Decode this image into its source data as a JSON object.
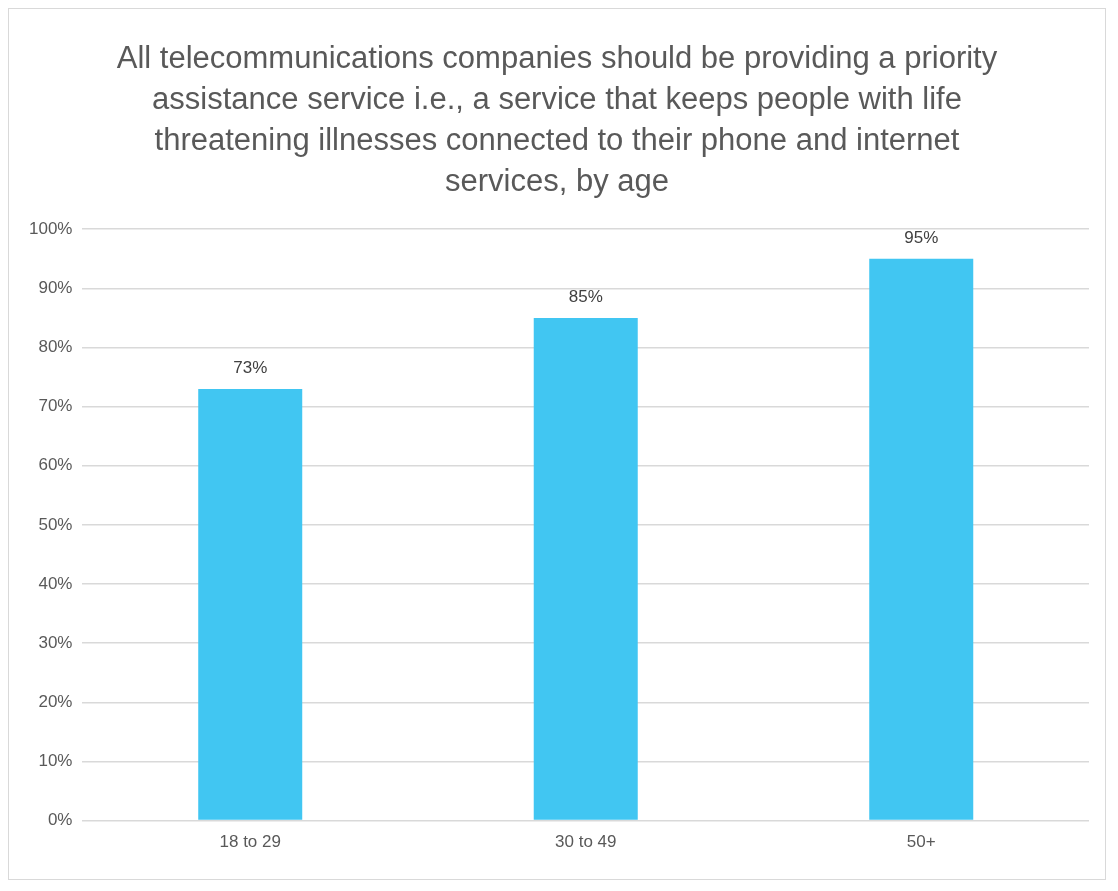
{
  "chart_data": {
    "type": "bar",
    "title": "All telecommunications companies should be providing a priority assistance service i.e., a service that keeps people with life threatening illnesses connected to their phone and internet services, by age",
    "categories": [
      "18 to 29",
      "30 to 49",
      "50+"
    ],
    "values": [
      73,
      85,
      95
    ],
    "value_labels": [
      "73%",
      "85%",
      "95%"
    ],
    "color": "#41c6f2",
    "ylim": [
      0,
      100
    ],
    "yticks": [
      {
        "value": 0,
        "label": "0%"
      },
      {
        "value": 10,
        "label": "10%"
      },
      {
        "value": 20,
        "label": "20%"
      },
      {
        "value": 30,
        "label": "30%"
      },
      {
        "value": 40,
        "label": "40%"
      },
      {
        "value": 50,
        "label": "50%"
      },
      {
        "value": 60,
        "label": "60%"
      },
      {
        "value": 70,
        "label": "70%"
      },
      {
        "value": 80,
        "label": "80%"
      },
      {
        "value": 90,
        "label": "90%"
      },
      {
        "value": 100,
        "label": "100%"
      }
    ],
    "grid": "y",
    "legend": false
  }
}
